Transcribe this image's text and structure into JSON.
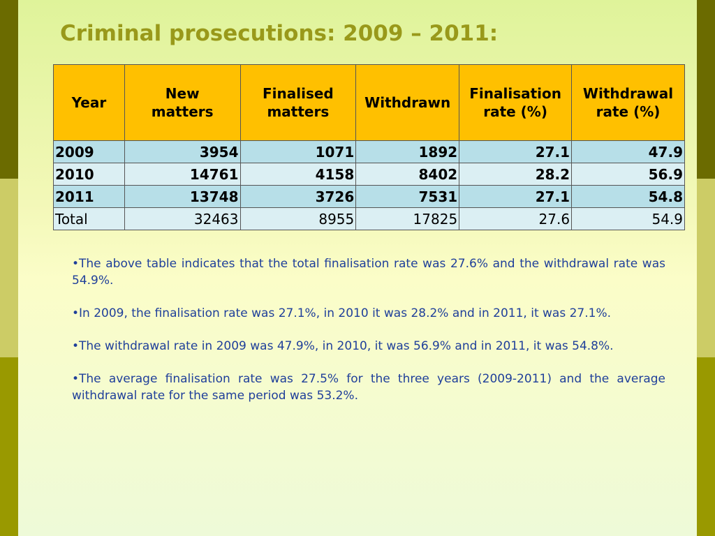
{
  "title": "Criminal prosecutions: 2009 – 2011:",
  "table": {
    "headers": [
      [
        "Year"
      ],
      [
        "New",
        "matters"
      ],
      [
        "Finalised",
        "matters"
      ],
      [
        "Withdrawn"
      ],
      [
        "Finalisation",
        "rate (%)"
      ],
      [
        "Withdrawal",
        "rate (%)"
      ]
    ],
    "rows": [
      [
        "2009",
        "3954",
        "1071",
        "1892",
        "27.1",
        "47.9"
      ],
      [
        "2010",
        "14761",
        "4158",
        "8402",
        "28.2",
        "56.9"
      ],
      [
        "2011",
        "13748",
        "3726",
        "7531",
        "27.1",
        "54.8"
      ],
      [
        "Total",
        "32463",
        "8955",
        "17825",
        "27.6",
        "54.9"
      ]
    ]
  },
  "bullets": [
    "•The above table indicates that the total finalisation rate was 27.6% and the withdrawal rate was 54.9%.",
    "•In 2009, the finalisation rate was 27.1%, in 2010 it was 28.2% and in 2011, it was 27.1%.",
    "•The withdrawal rate in 2009 was 47.9%, in 2010, it was 56.9% and in 2011, it was 54.8%.",
    "•The average finalisation rate was 27.5% for the three years (2009-2011) and the average withdrawal rate for the same period was 53.2%."
  ],
  "colors": {
    "title": "#99991a",
    "header_bg": "#ffc000",
    "row_dark": "#b7dfe8",
    "row_light": "#dbeff3",
    "bullet_text": "#1f3f9a",
    "band_top": "#6b6b00",
    "band_mid": "#cccc66",
    "band_bottom": "#999900"
  }
}
